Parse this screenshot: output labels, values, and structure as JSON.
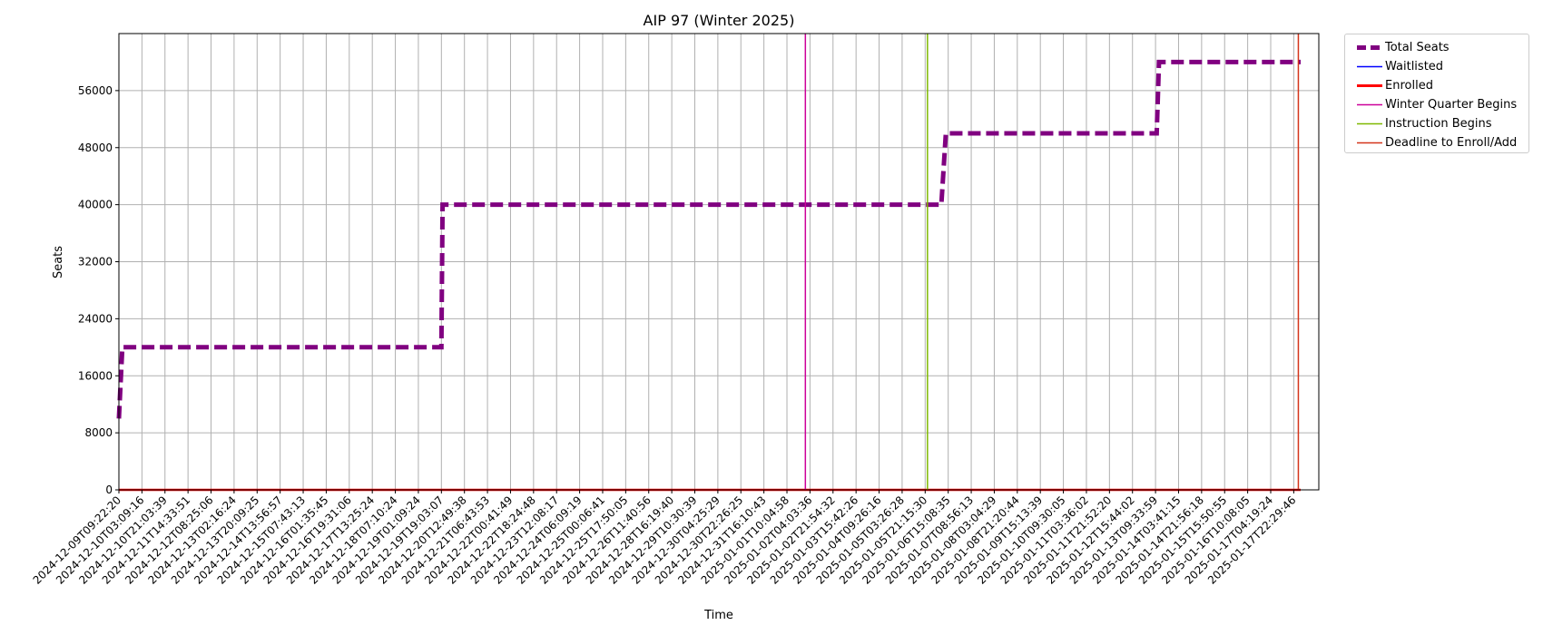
{
  "chart_data": {
    "type": "line",
    "title": "AIP 97 (Winter 2025)",
    "xlabel": "Time",
    "ylabel": "Seats",
    "ylim": [
      0,
      64000
    ],
    "yticks": [
      0,
      8000,
      16000,
      24000,
      32000,
      40000,
      48000,
      56000
    ],
    "grid": true,
    "legend_position": "outside-top-right",
    "x_tick_labels": [
      "2024-12-09T09:22:20",
      "2024-12-10T03:09:16",
      "2024-12-10T21:03:39",
      "2024-12-11T14:33:51",
      "2024-12-12T08:25:06",
      "2024-12-13T02:16:24",
      "2024-12-13T20:09:25",
      "2024-12-14T13:56:57",
      "2024-12-15T07:43:13",
      "2024-12-16T01:35:45",
      "2024-12-16T19:31:06",
      "2024-12-17T13:25:24",
      "2024-12-18T07:10:24",
      "2024-12-19T01:09:24",
      "2024-12-19T19:03:07",
      "2024-12-20T12:49:38",
      "2024-12-21T06:43:53",
      "2024-12-22T00:41:49",
      "2024-12-22T18:24:48",
      "2024-12-23T12:08:17",
      "2024-12-24T06:09:19",
      "2024-12-25T00:06:41",
      "2024-12-25T17:50:05",
      "2024-12-26T11:40:56",
      "2024-12-28T16:19:40",
      "2024-12-29T10:30:39",
      "2024-12-30T04:25:29",
      "2024-12-30T22:26:25",
      "2024-12-31T16:10:43",
      "2025-01-01T10:04:58",
      "2025-01-02T04:03:36",
      "2025-01-02T21:54:32",
      "2025-01-03T15:42:26",
      "2025-01-04T09:26:16",
      "2025-01-05T03:26:28",
      "2025-01-05T21:15:30",
      "2025-01-06T15:08:35",
      "2025-01-07T08:56:13",
      "2025-01-08T03:04:29",
      "2025-01-08T21:20:44",
      "2025-01-09T15:13:39",
      "2025-01-10T09:30:05",
      "2025-01-11T03:36:02",
      "2025-01-11T21:52:20",
      "2025-01-12T15:44:02",
      "2025-01-13T09:33:59",
      "2025-01-14T03:41:15",
      "2025-01-14T21:56:18",
      "2025-01-15T15:50:55",
      "2025-01-16T10:08:05",
      "2025-01-17T04:19:24",
      "2025-01-17T22:29:46"
    ],
    "series": [
      {
        "name": "Total Seats",
        "color": "#800080",
        "style": "dashed",
        "points": [
          {
            "x": 0.0,
            "y": 10000
          },
          {
            "x": 0.15,
            "y": 20000
          },
          {
            "x": 14.0,
            "y": 20000
          },
          {
            "x": 14.05,
            "y": 40000
          },
          {
            "x": 35.7,
            "y": 40000
          },
          {
            "x": 35.9,
            "y": 50000
          },
          {
            "x": 45.05,
            "y": 50000
          },
          {
            "x": 45.15,
            "y": 60000
          },
          {
            "x": 51.3,
            "y": 60000
          }
        ]
      },
      {
        "name": "Waitlisted",
        "color": "#0000ff",
        "style": "solid",
        "points": [
          {
            "x": 0.0,
            "y": 0
          },
          {
            "x": 51.3,
            "y": 0
          }
        ]
      },
      {
        "name": "Enrolled",
        "color": "#ff0000",
        "style": "solid",
        "points": [
          {
            "x": 0.0,
            "y": 0
          },
          {
            "x": 51.3,
            "y": 0
          }
        ]
      }
    ],
    "vlines": [
      {
        "name": "Winter Quarter Begins",
        "color": "#cc0099",
        "x": 29.8
      },
      {
        "name": "Instruction Begins",
        "color": "#7fb800",
        "x": 35.1
      },
      {
        "name": "Deadline to Enroll/Add",
        "color": "#d4341a",
        "x": 51.2
      }
    ]
  }
}
